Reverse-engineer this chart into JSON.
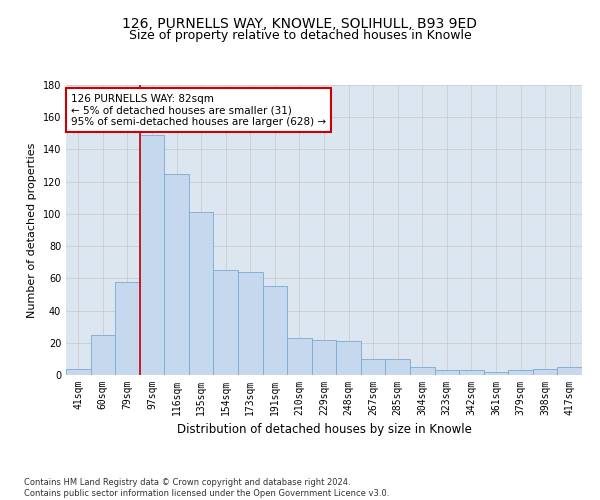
{
  "title1": "126, PURNELLS WAY, KNOWLE, SOLIHULL, B93 9ED",
  "title2": "Size of property relative to detached houses in Knowle",
  "xlabel": "Distribution of detached houses by size in Knowle",
  "ylabel": "Number of detached properties",
  "categories": [
    "41sqm",
    "60sqm",
    "79sqm",
    "97sqm",
    "116sqm",
    "135sqm",
    "154sqm",
    "173sqm",
    "191sqm",
    "210sqm",
    "229sqm",
    "248sqm",
    "267sqm",
    "285sqm",
    "304sqm",
    "323sqm",
    "342sqm",
    "361sqm",
    "379sqm",
    "398sqm",
    "417sqm"
  ],
  "values": [
    4,
    25,
    58,
    149,
    125,
    101,
    65,
    64,
    55,
    23,
    22,
    21,
    10,
    10,
    5,
    3,
    3,
    2,
    3,
    4,
    5
  ],
  "bar_color": "#c5d8ee",
  "bar_edge_color": "#7aaad0",
  "vline_color": "#cc0000",
  "vline_x": 2.5,
  "annotation_line1": "126 PURNELLS WAY: 82sqm",
  "annotation_line2": "← 5% of detached houses are smaller (31)",
  "annotation_line3": "95% of semi-detached houses are larger (628) →",
  "annotation_box_color": "#ffffff",
  "annotation_box_edge": "#cc0000",
  "ylim": [
    0,
    180
  ],
  "yticks": [
    0,
    20,
    40,
    60,
    80,
    100,
    120,
    140,
    160,
    180
  ],
  "grid_color": "#cccccc",
  "bg_color": "#dce6f0",
  "footer": "Contains HM Land Registry data © Crown copyright and database right 2024.\nContains public sector information licensed under the Open Government Licence v3.0.",
  "title1_fontsize": 10,
  "title2_fontsize": 9,
  "xlabel_fontsize": 8.5,
  "ylabel_fontsize": 8,
  "tick_fontsize": 7,
  "annot_fontsize": 7.5,
  "footer_fontsize": 6
}
